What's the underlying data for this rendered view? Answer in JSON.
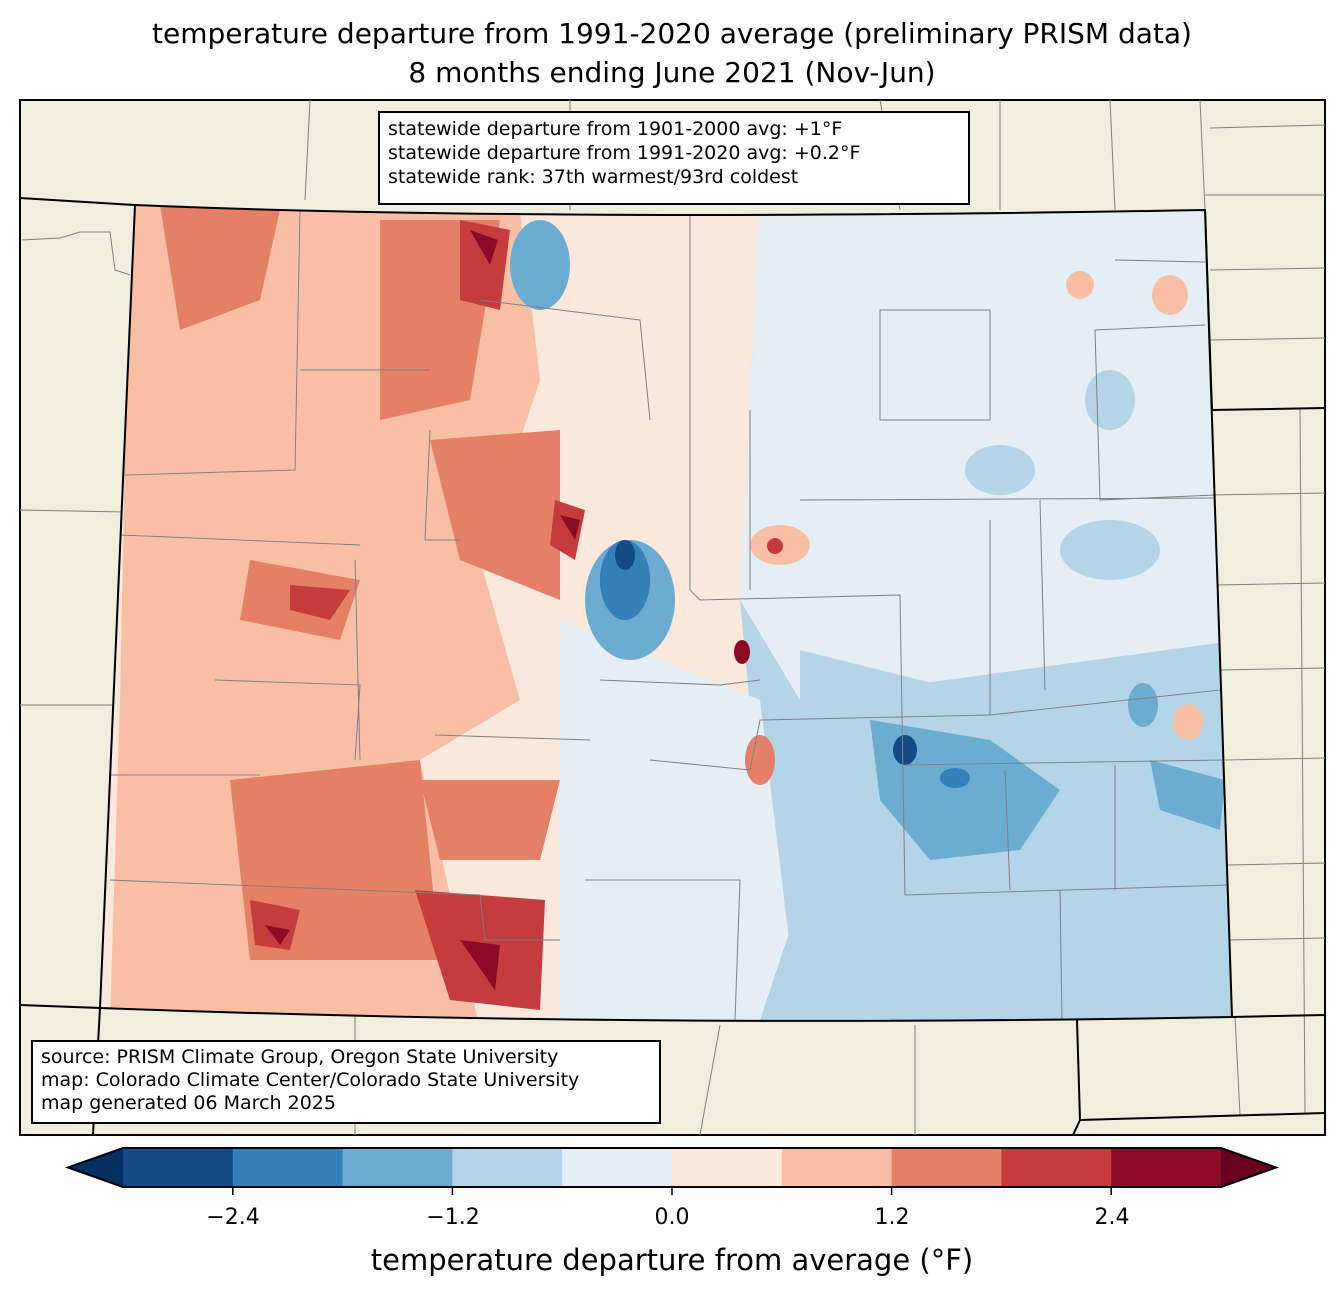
{
  "title": {
    "line1": "temperature departure from 1991-2020 average (preliminary PRISM data)",
    "line2": "8 months ending June 2021 (Nov-Jun)"
  },
  "stats": [
    "statewide departure from 1901-2000 avg: +1°F",
    "statewide departure from 1991-2020 avg: +0.2°F",
    "statewide rank: 37th warmest/93rd coldest"
  ],
  "source": [
    "source: PRISM Climate Group, Oregon State University",
    "map: Colorado Climate Center/Colorado State University",
    "map generated 06 March 2025"
  ],
  "colorbar": {
    "label": "temperature departure from average (°F)",
    "ticks": [
      "−2.4",
      "−1.2",
      "0.0",
      "1.2",
      "2.4"
    ],
    "tick_values": [
      -2.4,
      -1.2,
      0.0,
      1.2,
      2.4
    ],
    "bounds": [
      -3.0,
      -2.4,
      -1.8,
      -1.2,
      -0.6,
      0.0,
      0.6,
      1.2,
      1.8,
      2.4,
      3.0
    ],
    "extend_min_color": "#053061",
    "extend_max_color": "#67001f",
    "colors": [
      "#144b87",
      "#3480b9",
      "#6bacd0",
      "#b3d5e7",
      "#e5eef5",
      "#fae8dd",
      "#f9bfa5",
      "#e48066",
      "#c43c3c",
      "#8a0b25"
    ]
  },
  "map_colors": {
    "land": "#f0eedc",
    "border": "#000000",
    "county": "#808080"
  }
}
